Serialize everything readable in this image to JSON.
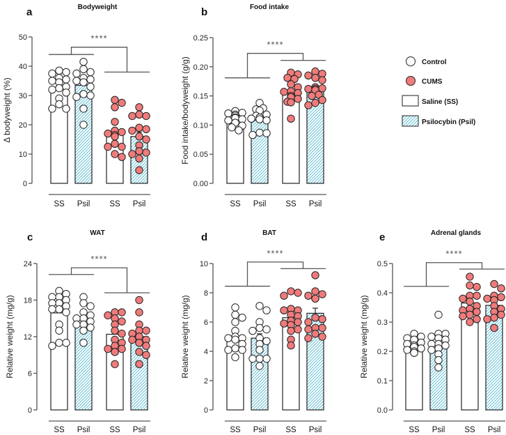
{
  "legend": {
    "items": [
      {
        "label": "Control",
        "kind": "dot",
        "color": "#ffffff"
      },
      {
        "label": "CUMS",
        "kind": "dot",
        "color": "#f07b7b"
      },
      {
        "label": "Saline (SS)",
        "kind": "bar",
        "pattern": "plain"
      },
      {
        "label": "Psilocybin (Psil)",
        "kind": "bar",
        "pattern": "hatch"
      }
    ]
  },
  "colors": {
    "control_dot": "#ffffff",
    "cums_dot": "#f07b7b",
    "dot_outline": "#222222",
    "hatch": "#3aafc8",
    "bracket": "#555555",
    "axis": "#555555"
  },
  "chart_data": [
    {
      "id": "a",
      "type": "bar",
      "panel_letter": "a",
      "title": "Bodyweight",
      "ylabel": "Δ bodyweight (%)",
      "xlabel": "",
      "ylim": [
        0,
        50
      ],
      "yticks": [
        0,
        10,
        20,
        30,
        40,
        50
      ],
      "ytick_labels": [
        "0",
        "10",
        "20",
        "30",
        "40",
        "50"
      ],
      "categories": [
        "SS",
        "Psil",
        "SS",
        "Psil"
      ],
      "groups": [
        "Control",
        "Control",
        "CUMS",
        "CUMS"
      ],
      "patterns": [
        "plain",
        "hatch",
        "plain",
        "hatch"
      ],
      "values": [
        32.5,
        33.5,
        17.2,
        16.0
      ],
      "errors": [
        0,
        0,
        0,
        1.5
      ],
      "significance": {
        "label": "****",
        "left_bracket_y": 44,
        "right_bracket_y": 38,
        "top_y": 46.5
      },
      "points": [
        [
          38.5,
          38,
          37.5,
          36,
          35,
          35.5,
          34.5,
          33,
          32.5,
          32,
          31,
          29,
          27,
          25.5,
          25.5
        ],
        [
          41.5,
          39,
          38,
          37.5,
          36,
          35.5,
          35,
          34.5,
          33,
          30.5,
          30,
          29.5,
          25.5,
          20
        ],
        [
          28.5,
          27.5,
          26,
          21,
          18,
          17.5,
          17,
          16.5,
          16,
          13.5,
          12.5,
          12.5,
          10,
          9
        ],
        [
          26,
          23.5,
          23,
          23,
          19,
          18.5,
          18,
          16,
          15,
          13,
          11,
          10.5,
          10,
          8.5,
          4.5
        ]
      ]
    },
    {
      "id": "b",
      "type": "bar",
      "panel_letter": "b",
      "title": "Food intake",
      "ylabel": "Food intake/bodyweight (g/g)",
      "xlabel": "",
      "ylim": [
        0,
        0.25
      ],
      "yticks": [
        0,
        0.05,
        0.1,
        0.15,
        0.2,
        0.25
      ],
      "ytick_labels": [
        "0.00",
        "0.05",
        "0.10",
        "0.15",
        "0.20",
        "0.25"
      ],
      "categories": [
        "SS",
        "Psil",
        "SS",
        "Psil"
      ],
      "groups": [
        "Control",
        "Control",
        "CUMS",
        "CUMS"
      ],
      "patterns": [
        "plain",
        "hatch",
        "plain",
        "hatch"
      ],
      "values": [
        0.111,
        0.108,
        0.155,
        0.16
      ],
      "errors": [
        0,
        0,
        0.004,
        0.005
      ],
      "significance": {
        "label": "****",
        "left_bracket_y": 0.181,
        "right_bracket_y": 0.211,
        "top_y": 0.223
      },
      "points": [
        [
          0.124,
          0.121,
          0.12,
          0.118,
          0.116,
          0.113,
          0.112,
          0.11,
          0.108,
          0.104,
          0.099,
          0.096,
          0.091
        ],
        [
          0.138,
          0.129,
          0.127,
          0.125,
          0.118,
          0.116,
          0.113,
          0.111,
          0.11,
          0.108,
          0.087,
          0.086,
          0.083
        ],
        [
          0.19,
          0.187,
          0.181,
          0.179,
          0.17,
          0.165,
          0.158,
          0.157,
          0.155,
          0.15,
          0.148,
          0.145,
          0.14,
          0.139,
          0.111
        ],
        [
          0.192,
          0.188,
          0.185,
          0.181,
          0.177,
          0.165,
          0.163,
          0.162,
          0.162,
          0.16,
          0.152,
          0.15,
          0.143,
          0.138,
          0.134
        ]
      ]
    },
    {
      "id": "c",
      "type": "bar",
      "panel_letter": "c",
      "title": "WAT",
      "ylabel": "Relative weight (mg/g)",
      "xlabel": "",
      "ylim": [
        0,
        24
      ],
      "yticks": [
        0,
        6,
        12,
        18,
        24
      ],
      "ytick_labels": [
        "0",
        "6",
        "12",
        "18",
        "24"
      ],
      "categories": [
        "SS",
        "Psil",
        "SS",
        "Psil"
      ],
      "groups": [
        "Control",
        "Control",
        "CUMS",
        "CUMS"
      ],
      "patterns": [
        "plain",
        "hatch",
        "plain",
        "hatch"
      ],
      "values": [
        15.9,
        14.7,
        12.4,
        12.0
      ],
      "errors": [
        0,
        0,
        0,
        0
      ],
      "significance": {
        "label": "****",
        "left_bracket_y": 22.2,
        "right_bracket_y": 19.2,
        "top_y": 23.3
      },
      "points": [
        [
          19.5,
          19,
          18.5,
          18.5,
          18,
          17.5,
          17.5,
          17,
          16.5,
          16.5,
          16,
          14,
          13,
          11,
          11,
          10.5
        ],
        [
          18.5,
          17.5,
          17,
          16,
          15.5,
          15,
          15,
          14.5,
          14,
          14,
          13.5,
          13,
          11
        ],
        [
          16,
          16,
          15.5,
          15,
          14.5,
          14,
          13,
          12.5,
          11.5,
          11,
          10.5,
          10,
          10,
          9.5,
          9.5,
          7.5
        ],
        [
          18,
          16,
          14,
          13,
          13,
          12.5,
          12,
          11.5,
          11.5,
          11,
          11,
          10.5,
          9.5,
          9,
          7.5
        ]
      ]
    },
    {
      "id": "d",
      "type": "bar",
      "panel_letter": "d",
      "title": "BAT",
      "ylabel": "Relative weight (mg/g)",
      "xlabel": "",
      "ylim": [
        0,
        10
      ],
      "yticks": [
        0,
        2,
        4,
        6,
        8,
        10
      ],
      "ytick_labels": [
        "0",
        "2",
        "4",
        "6",
        "8",
        "10"
      ],
      "categories": [
        "SS",
        "Psil",
        "SS",
        "Psil"
      ],
      "groups": [
        "Control",
        "Control",
        "CUMS",
        "CUMS"
      ],
      "patterns": [
        "plain",
        "hatch",
        "plain",
        "hatch"
      ],
      "values": [
        5.05,
        4.9,
        6.3,
        6.6
      ],
      "errors": [
        0,
        0.3,
        0.3,
        0.35
      ],
      "significance": {
        "label": "****",
        "left_bracket_y": 8.45,
        "right_bracket_y": 9.65,
        "top_y": 10.1
      },
      "points": [
        [
          7.0,
          6.5,
          6.3,
          6.0,
          5.4,
          5.0,
          4.9,
          4.9,
          4.8,
          4.5,
          4.2,
          4.1,
          4.1,
          3.6
        ],
        [
          7.1,
          6.8,
          6.0,
          5.6,
          5.5,
          5.4,
          4.9,
          4.7,
          4.5,
          4.1,
          3.5,
          3.5,
          3.5,
          3.0
        ],
        [
          8.1,
          8.0,
          7.8,
          6.9,
          6.8,
          6.8,
          6.5,
          6.4,
          6.1,
          6.0,
          5.9,
          5.8,
          5.5,
          5.4,
          4.8,
          4.4
        ],
        [
          9.2,
          8.1,
          7.9,
          7.8,
          7.6,
          7.6,
          6.3,
          6.2,
          6.0,
          5.6,
          5.6,
          5.5,
          5.2,
          5.0,
          4.9
        ]
      ]
    },
    {
      "id": "e",
      "type": "bar",
      "panel_letter": "e",
      "title": "Adrenal glands",
      "ylabel": "Relative weight (mg/g)",
      "xlabel": "",
      "ylim": [
        0,
        0.5
      ],
      "yticks": [
        0,
        0.1,
        0.2,
        0.3,
        0.4,
        0.5
      ],
      "ytick_labels": [
        "0.0",
        "0.1",
        "0.2",
        "0.3",
        "0.4",
        "0.5"
      ],
      "categories": [
        "SS",
        "Psil",
        "SS",
        "Psil"
      ],
      "groups": [
        "Control",
        "Control",
        "CUMS",
        "CUMS"
      ],
      "patterns": [
        "plain",
        "hatch",
        "plain",
        "hatch"
      ],
      "values": [
        0.215,
        0.225,
        0.365,
        0.357
      ],
      "errors": [
        0,
        0,
        0.01,
        0.01
      ],
      "significance": {
        "label": "****",
        "left_bracket_y": 0.422,
        "right_bracket_y": 0.481,
        "top_y": 0.503
      },
      "points": [
        [
          0.26,
          0.25,
          0.245,
          0.24,
          0.23,
          0.225,
          0.22,
          0.215,
          0.21,
          0.205,
          0.2,
          0.195,
          0.195
        ],
        [
          0.325,
          0.26,
          0.26,
          0.25,
          0.245,
          0.24,
          0.225,
          0.225,
          0.22,
          0.21,
          0.205,
          0.19,
          0.17,
          0.145
        ],
        [
          0.455,
          0.425,
          0.42,
          0.39,
          0.39,
          0.38,
          0.37,
          0.355,
          0.345,
          0.34,
          0.335,
          0.325,
          0.32,
          0.31,
          0.3
        ],
        [
          0.43,
          0.415,
          0.39,
          0.385,
          0.38,
          0.375,
          0.355,
          0.345,
          0.335,
          0.325,
          0.315,
          0.31,
          0.28
        ]
      ]
    }
  ]
}
